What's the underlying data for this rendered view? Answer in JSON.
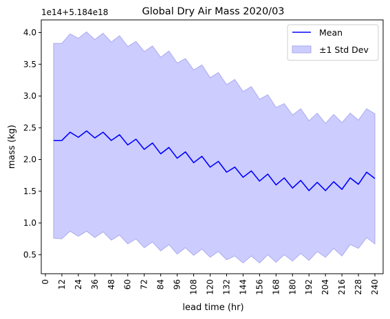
{
  "chart_data": {
    "type": "line",
    "title": "Global Dry Air Mass 2020/03",
    "xlabel": "lead time (hr)",
    "ylabel": "mass (kg)",
    "y_offset_label": "1e14+5.184e18",
    "xlim": [
      -3,
      246
    ],
    "ylim": [
      0.2,
      4.2
    ],
    "x_ticks": [
      0,
      12,
      24,
      36,
      48,
      60,
      72,
      84,
      96,
      108,
      120,
      132,
      144,
      156,
      168,
      180,
      192,
      204,
      216,
      228,
      240
    ],
    "x_tick_labels": [
      "0",
      "12",
      "24",
      "36",
      "48",
      "60",
      "72",
      "84",
      "96",
      "108",
      "120",
      "132",
      "144",
      "156",
      "168",
      "180",
      "192",
      "204",
      "216",
      "228",
      "240"
    ],
    "y_ticks": [
      0.5,
      1.0,
      1.5,
      2.0,
      2.5,
      3.0,
      3.5,
      4.0
    ],
    "y_tick_labels": [
      "0.5",
      "1.0",
      "1.5",
      "2.0",
      "2.5",
      "3.0",
      "3.5",
      "4.0"
    ],
    "grid": false,
    "legend_position": "top-right",
    "x": [
      6,
      12,
      18,
      24,
      30,
      36,
      42,
      48,
      54,
      60,
      66,
      72,
      78,
      84,
      90,
      96,
      102,
      108,
      114,
      120,
      126,
      132,
      138,
      144,
      150,
      156,
      162,
      168,
      174,
      180,
      186,
      192,
      198,
      204,
      210,
      216,
      222,
      228,
      234,
      240
    ],
    "series": [
      {
        "name": "Mean",
        "kind": "line",
        "color": "#0000ff",
        "values": [
          2.3,
          2.3,
          2.43,
          2.35,
          2.45,
          2.34,
          2.43,
          2.3,
          2.39,
          2.23,
          2.32,
          2.16,
          2.26,
          2.09,
          2.19,
          2.02,
          2.12,
          1.95,
          2.05,
          1.88,
          1.97,
          1.8,
          1.88,
          1.72,
          1.82,
          1.66,
          1.77,
          1.6,
          1.71,
          1.55,
          1.67,
          1.51,
          1.64,
          1.51,
          1.65,
          1.53,
          1.71,
          1.61,
          1.8,
          1.7
        ]
      },
      {
        "name": "±1 Std Dev",
        "kind": "band",
        "color": "#ccccff",
        "upper": [
          3.83,
          3.83,
          3.98,
          3.91,
          4.01,
          3.89,
          3.99,
          3.85,
          3.95,
          3.78,
          3.86,
          3.7,
          3.79,
          3.61,
          3.71,
          3.52,
          3.59,
          3.41,
          3.49,
          3.29,
          3.37,
          3.18,
          3.26,
          3.07,
          3.15,
          2.95,
          3.02,
          2.82,
          2.88,
          2.7,
          2.8,
          2.61,
          2.73,
          2.57,
          2.71,
          2.58,
          2.73,
          2.62,
          2.8,
          2.72
        ],
        "lower": [
          0.76,
          0.75,
          0.87,
          0.79,
          0.87,
          0.77,
          0.86,
          0.73,
          0.81,
          0.67,
          0.75,
          0.61,
          0.7,
          0.56,
          0.66,
          0.51,
          0.61,
          0.49,
          0.59,
          0.46,
          0.55,
          0.42,
          0.48,
          0.37,
          0.48,
          0.37,
          0.5,
          0.38,
          0.5,
          0.4,
          0.52,
          0.41,
          0.55,
          0.46,
          0.6,
          0.48,
          0.66,
          0.6,
          0.77,
          0.67
        ]
      }
    ]
  }
}
